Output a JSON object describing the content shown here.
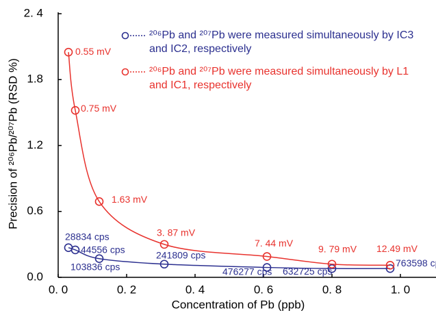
{
  "chart_data": {
    "type": "scatter",
    "xlabel": "Concentration of Pb (ppb)",
    "ylabel": "Precision of ²⁰⁶Pb/²⁰⁷Pb (RSD %)",
    "xlim": [
      0,
      1.1
    ],
    "ylim": [
      0,
      2.4
    ],
    "xticks": [
      {
        "value": 0,
        "label": "0. 0"
      },
      {
        "value": 0.2,
        "label": "0. 2"
      },
      {
        "value": 0.4,
        "label": "0. 4"
      },
      {
        "value": 0.6,
        "label": "0. 6"
      },
      {
        "value": 0.8,
        "label": "0. 8"
      },
      {
        "value": 1.0,
        "label": "1. 0"
      }
    ],
    "yticks": [
      {
        "value": 0,
        "label": "0.0"
      },
      0.6,
      1.2,
      1.8,
      {
        "value": 2.4,
        "label": "2. 4"
      }
    ],
    "series": [
      {
        "name": "²⁰⁶Pb and ²⁰⁷Pb were measured simultaneously by IC3 and IC2, respectively",
        "color": "#2b2f8f",
        "x": [
          0.03,
          0.05,
          0.12,
          0.31,
          0.61,
          0.8,
          0.97
        ],
        "values": [
          0.27,
          0.25,
          0.17,
          0.12,
          0.09,
          0.08,
          0.08
        ],
        "point_labels": [
          "28834 cps",
          "44556 cps",
          "103836 cps",
          "241809 cps",
          "476277 cps",
          "632725 cps",
          "763598 cps"
        ]
      },
      {
        "name": "²⁰⁶Pb and ²⁰⁷Pb were measured simultaneously by L1 and IC1, respectively",
        "color": "#e8322d",
        "x": [
          0.03,
          0.05,
          0.12,
          0.31,
          0.61,
          0.8,
          0.97
        ],
        "values": [
          2.05,
          1.52,
          0.69,
          0.3,
          0.19,
          0.12,
          0.11
        ],
        "point_labels": [
          "0.55 mV",
          "0.75 mV",
          "1.63 mV",
          "3. 87 mV",
          "7. 44 mV",
          "9. 79 mV",
          "12.49 mV"
        ]
      }
    ]
  }
}
